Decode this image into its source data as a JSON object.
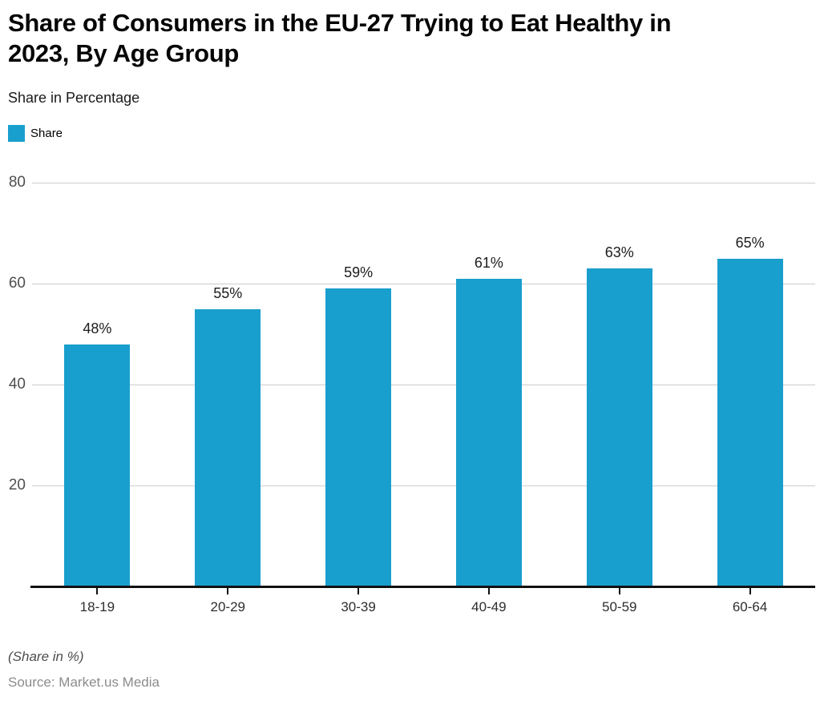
{
  "chart_data": {
    "type": "bar",
    "title": "Share of Consumers in the EU-27 Trying to Eat Healthy in 2023, By Age Group",
    "title_lines": [
      "Share of Consumers in the EU-27 Trying to Eat Healthy in",
      "2023, By Age Group"
    ],
    "subtitle": "Share in Percentage",
    "legend_label": "Share",
    "categories": [
      "18-19",
      "20-29",
      "30-39",
      "40-49",
      "50-59",
      "60-64"
    ],
    "values": [
      48,
      55,
      59,
      61,
      63,
      65
    ],
    "data_labels": [
      "48%",
      "55%",
      "59%",
      "61%",
      "63%",
      "65%"
    ],
    "yticks": [
      20,
      40,
      60,
      80
    ],
    "ylim": [
      0,
      80
    ],
    "xlabel": "",
    "ylabel": "",
    "grid": "horizontal",
    "legend_position": "top-left",
    "bar_color": "#199fcd",
    "gridline_color": "#cccccc",
    "axis_color": "#111111",
    "footnote": "(Share in %)",
    "source": "Source: Market.us Media"
  }
}
